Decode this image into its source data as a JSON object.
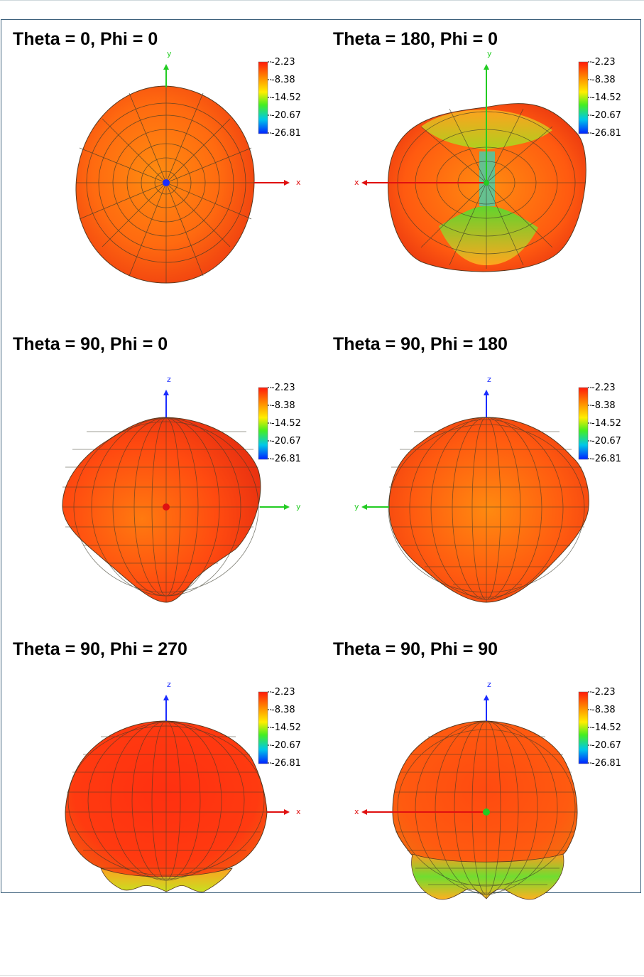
{
  "colorbar": {
    "ticks": [
      "-2.23",
      "-8.38",
      "-14.52",
      "-20.67",
      "-26.81"
    ],
    "colors": [
      "#ff1a0a",
      "#ff8c00",
      "#ffee00",
      "#44ee22",
      "#00c8e8",
      "#0022ff"
    ]
  },
  "panels": [
    {
      "title": "Theta = 0, Phi = 0",
      "axes": {
        "vertical": "y",
        "horizontal": "x",
        "horizontal_side": "right",
        "vertical_color": "#22cc22",
        "horizontal_color": "#e01010",
        "center_dot": "#1a2cff"
      }
    },
    {
      "title": "Theta = 180, Phi = 0",
      "axes": {
        "vertical": "y",
        "horizontal": "x",
        "horizontal_side": "left",
        "vertical_color": "#22cc22",
        "horizontal_color": "#e01010",
        "center_dot": "#22cc22"
      }
    },
    {
      "title": "Theta = 90, Phi = 0",
      "axes": {
        "vertical": "z",
        "horizontal": "y",
        "horizontal_side": "right",
        "vertical_color": "#1a2cff",
        "horizontal_color": "#22cc22",
        "center_dot": "#e01010"
      }
    },
    {
      "title": "Theta = 90, Phi = 180",
      "axes": {
        "vertical": "z",
        "horizontal": "y",
        "horizontal_side": "left",
        "vertical_color": "#1a2cff",
        "horizontal_color": "#22cc22",
        "center_dot": ""
      }
    },
    {
      "title": "Theta = 90, Phi = 270",
      "axes": {
        "vertical": "z",
        "horizontal": "x",
        "horizontal_side": "right",
        "vertical_color": "#1a2cff",
        "horizontal_color": "#e01010",
        "center_dot": ""
      }
    },
    {
      "title": "Theta = 90, Phi = 90",
      "axes": {
        "vertical": "z",
        "horizontal": "x",
        "horizontal_side": "left",
        "vertical_color": "#1a2cff",
        "horizontal_color": "#e01010",
        "center_dot": "#22cc22"
      }
    }
  ]
}
